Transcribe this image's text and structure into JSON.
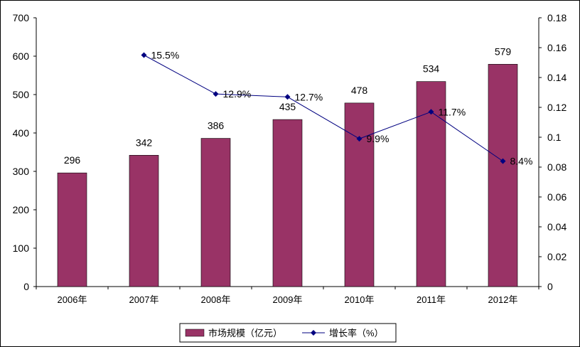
{
  "chart_data": {
    "type": "bar",
    "categories": [
      "2006年",
      "2007年",
      "2008年",
      "2009年",
      "2010年",
      "2011年",
      "2012年"
    ],
    "series": [
      {
        "name": "市场规模（亿元）",
        "type": "bar",
        "axis": "left",
        "values": [
          296,
          342,
          386,
          435,
          478,
          534,
          579
        ],
        "labels": [
          "296",
          "342",
          "386",
          "435",
          "478",
          "534",
          "579"
        ],
        "color": "#993366"
      },
      {
        "name": "增长率（%）",
        "type": "line",
        "axis": "right",
        "values": [
          null,
          0.155,
          0.129,
          0.127,
          0.099,
          0.117,
          0.084
        ],
        "labels": [
          "",
          "15.5%",
          "12.9%",
          "12.7%",
          "9.9%",
          "11.7%",
          "8.4%"
        ],
        "color": "#000080"
      }
    ],
    "y_left": {
      "ylim": [
        0,
        700
      ],
      "ticks": [
        "0",
        "100",
        "200",
        "300",
        "400",
        "500",
        "600",
        "700"
      ]
    },
    "y_right": {
      "ylim": [
        0,
        0.18
      ],
      "ticks": [
        "0",
        "0.02",
        "0.04",
        "0.06",
        "0.08",
        "0.1",
        "0.12",
        "0.14",
        "0.16",
        "0.18"
      ]
    },
    "legend": {
      "position": "bottom",
      "items": [
        "市场规模（亿元）",
        "增长率（%）"
      ]
    },
    "grid": false
  }
}
